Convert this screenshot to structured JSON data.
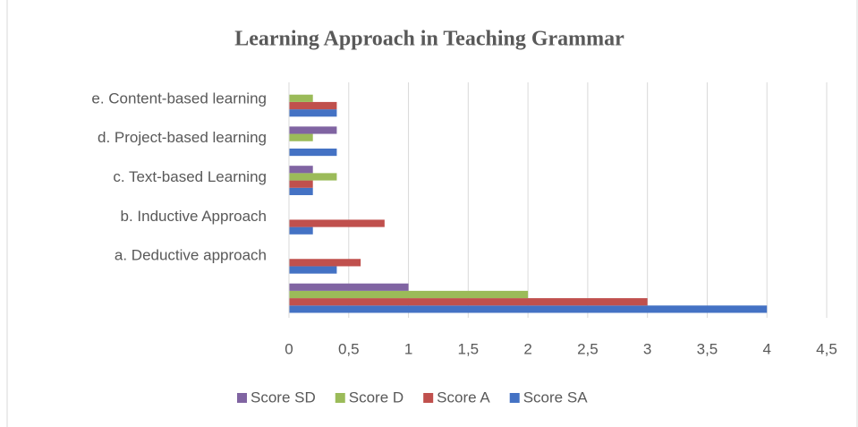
{
  "chart_data": {
    "type": "hbar",
    "title": "Learning Approach in Teaching Grammar",
    "categories": [
      null,
      "a.    Deductive approach",
      "b.   Inductive Approach",
      "c.    Text-based Learning",
      "d.   Project-based learning",
      "e.    Content-based learning"
    ],
    "series": [
      {
        "name": "Score SA",
        "color": "#4472c4",
        "values": [
          4,
          0.4,
          0.2,
          0.2,
          0.4,
          0.4
        ]
      },
      {
        "name": "Score A",
        "color": "#c0504d",
        "values": [
          3,
          0.6,
          0.8,
          0.2,
          0,
          0.4
        ]
      },
      {
        "name": "Score D",
        "color": "#9bbb59",
        "values": [
          2,
          0,
          0,
          0.4,
          0.2,
          0.2
        ]
      },
      {
        "name": "Score SD",
        "color": "#8064a2",
        "values": [
          1,
          0,
          0,
          0.2,
          0.4,
          0
        ]
      }
    ],
    "xlim": [
      0,
      4.5
    ],
    "xticks": [
      0,
      {
        "value": 0.5,
        "label": "0,5"
      },
      1,
      {
        "value": 1.5,
        "label": "1,5"
      },
      2,
      {
        "value": 2.5,
        "label": "2,5"
      },
      3,
      {
        "value": 3.5,
        "label": "3,5"
      },
      4,
      {
        "value": 4.5,
        "label": "4,5"
      }
    ],
    "grid": true
  }
}
